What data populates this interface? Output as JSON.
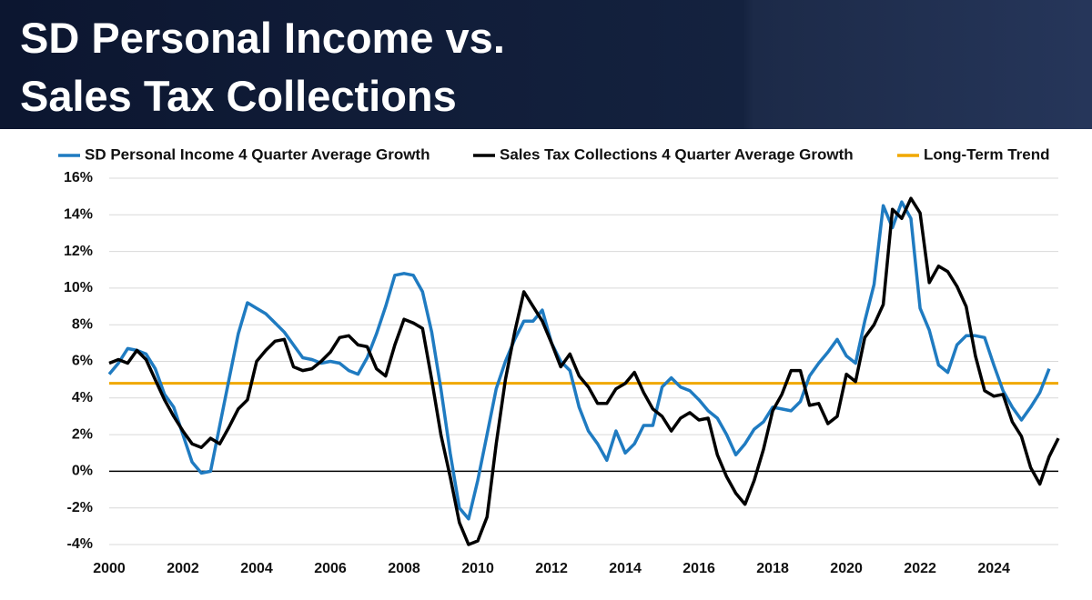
{
  "chart_data": {
    "type": "line",
    "title_lines": [
      "SD Personal Income vs.",
      "Sales Tax Collections"
    ],
    "x": [
      2000,
      2000.25,
      2000.5,
      2000.75,
      2001,
      2001.25,
      2001.5,
      2001.75,
      2002,
      2002.25,
      2002.5,
      2002.75,
      2003,
      2003.25,
      2003.5,
      2003.75,
      2004,
      2004.25,
      2004.5,
      2004.75,
      2005,
      2005.25,
      2005.5,
      2005.75,
      2006,
      2006.25,
      2006.5,
      2006.75,
      2007,
      2007.25,
      2007.5,
      2007.75,
      2008,
      2008.25,
      2008.5,
      2008.75,
      2009,
      2009.25,
      2009.5,
      2009.75,
      2010,
      2010.25,
      2010.5,
      2010.75,
      2011,
      2011.25,
      2011.5,
      2011.75,
      2012,
      2012.25,
      2012.5,
      2012.75,
      2013,
      2013.25,
      2013.5,
      2013.75,
      2014,
      2014.25,
      2014.5,
      2014.75,
      2015,
      2015.25,
      2015.5,
      2015.75,
      2016,
      2016.25,
      2016.5,
      2016.75,
      2017,
      2017.25,
      2017.5,
      2017.75,
      2018,
      2018.25,
      2018.5,
      2018.75,
      2019,
      2019.25,
      2019.5,
      2019.75,
      2020,
      2020.25,
      2020.5,
      2020.75,
      2021,
      2021.25,
      2021.5,
      2021.75,
      2022,
      2022.25,
      2022.5,
      2022.75,
      2023,
      2023.25,
      2023.5,
      2023.75,
      2024,
      2024.25,
      2024.5,
      2024.75,
      2025,
      2025.25,
      2025.5,
      2025.75
    ],
    "series": [
      {
        "name": "SD Personal Income 4 Quarter Average Growth",
        "color": "#1f7bc1",
        "values": [
          5.3,
          5.9,
          6.7,
          6.6,
          6.4,
          5.6,
          4.2,
          3.5,
          2.0,
          0.5,
          -0.1,
          0.0,
          2.5,
          5.0,
          7.5,
          9.2,
          8.9,
          8.6,
          8.1,
          7.6,
          6.9,
          6.2,
          6.1,
          5.9,
          6.0,
          5.9,
          5.5,
          5.3,
          6.2,
          7.5,
          9.0,
          10.7,
          10.8,
          10.7,
          9.8,
          7.6,
          4.5,
          1.0,
          -2.0,
          -2.6,
          -0.5,
          2.0,
          4.5,
          6.0,
          7.2,
          8.2,
          8.2,
          8.8,
          7.0,
          6.0,
          5.5,
          3.5,
          2.2,
          1.5,
          0.6,
          2.2,
          1.0,
          1.5,
          2.5,
          2.5,
          4.6,
          5.1,
          4.6,
          4.4,
          3.9,
          3.3,
          2.9,
          2.0,
          0.9,
          1.5,
          2.3,
          2.7,
          3.5,
          3.4,
          3.3,
          3.8,
          5.2,
          5.9,
          6.5,
          7.2,
          6.3,
          5.9,
          8.2,
          10.2,
          14.5,
          13.3,
          14.7,
          13.8,
          8.9,
          7.7,
          5.8,
          5.4,
          6.9,
          7.4,
          7.4,
          7.3,
          5.8,
          4.4,
          3.5,
          2.8,
          3.5,
          4.3,
          5.6,
          null
        ]
      },
      {
        "name": "Sales Tax Collections 4 Quarter Average Growth",
        "color": "#000000",
        "values": [
          5.9,
          6.1,
          5.9,
          6.6,
          6.1,
          5.0,
          3.9,
          3.0,
          2.2,
          1.5,
          1.3,
          1.8,
          1.5,
          2.4,
          3.4,
          3.9,
          6.0,
          6.6,
          7.1,
          7.2,
          5.7,
          5.5,
          5.6,
          6.0,
          6.5,
          7.3,
          7.4,
          6.9,
          6.8,
          5.6,
          5.2,
          6.9,
          8.3,
          8.1,
          7.8,
          5.0,
          2.0,
          -0.3,
          -2.8,
          -4.0,
          -3.8,
          -2.5,
          1.5,
          5.0,
          7.6,
          9.8,
          9.0,
          8.2,
          7.0,
          5.7,
          6.4,
          5.2,
          4.6,
          3.7,
          3.7,
          4.5,
          4.8,
          5.4,
          4.3,
          3.4,
          3.0,
          2.2,
          2.9,
          3.2,
          2.8,
          2.9,
          0.9,
          -0.3,
          -1.2,
          -1.8,
          -0.5,
          1.2,
          3.3,
          4.2,
          5.5,
          5.5,
          3.6,
          3.7,
          2.6,
          3.0,
          5.3,
          4.9,
          7.3,
          8.0,
          9.1,
          14.3,
          13.8,
          14.9,
          14.1,
          10.3,
          11.2,
          10.9,
          10.1,
          9.0,
          6.3,
          4.4,
          4.1,
          4.2,
          2.7,
          1.9,
          0.2,
          -0.7,
          0.8,
          1.8
        ]
      }
    ],
    "trend": {
      "name": "Long-Term Trend",
      "color": "#f0a800",
      "value": 4.8
    },
    "xlim": [
      2000,
      2025.75
    ],
    "xticks": [
      2000,
      2002,
      2004,
      2006,
      2008,
      2010,
      2012,
      2014,
      2016,
      2018,
      2020,
      2022,
      2024
    ],
    "ylim": [
      -4,
      16
    ],
    "yticks": [
      {
        "value": -4,
        "label": "-4%"
      },
      {
        "value": -2,
        "label": "-2%"
      },
      {
        "value": 0,
        "label": "0%"
      },
      {
        "value": 2,
        "label": "2%"
      },
      {
        "value": 4,
        "label": "4%"
      },
      {
        "value": 6,
        "label": "6%"
      },
      {
        "value": 8,
        "label": "8%"
      },
      {
        "value": 10,
        "label": "10%"
      },
      {
        "value": 12,
        "label": "12%"
      },
      {
        "value": 14,
        "label": "14%"
      },
      {
        "value": 16,
        "label": "16%"
      }
    ],
    "grid": true
  }
}
